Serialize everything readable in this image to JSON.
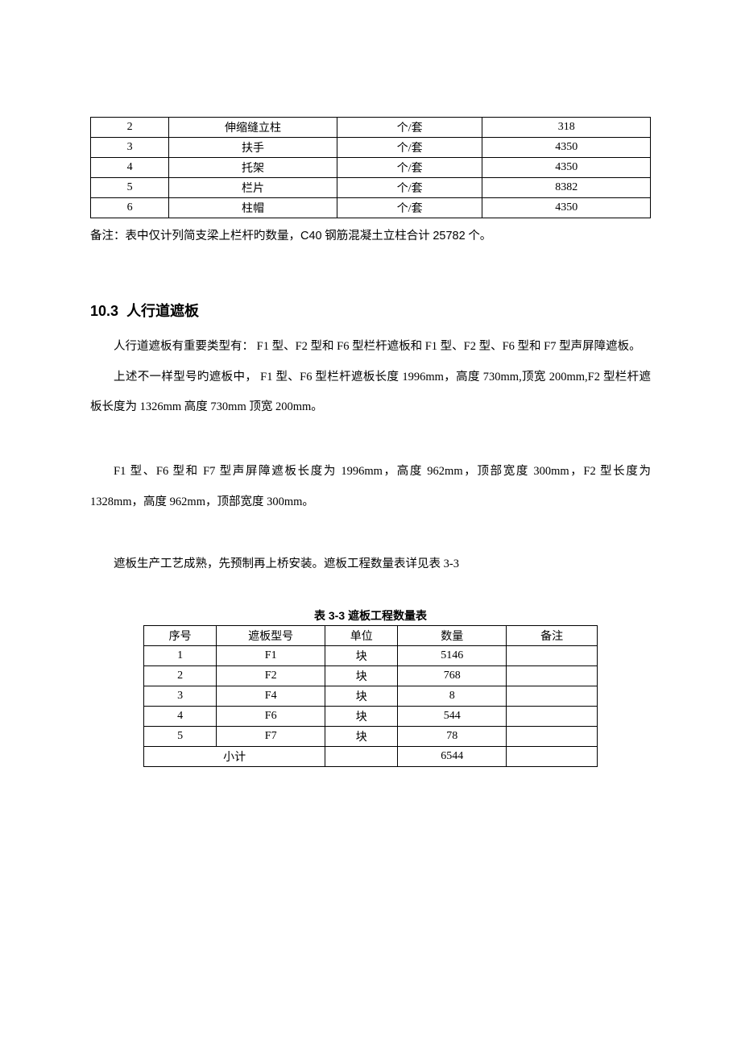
{
  "table1": {
    "col_widths": [
      "14%",
      "30%",
      "26%",
      "30%"
    ],
    "rows": [
      {
        "no": "2",
        "name": "伸缩缝立柱",
        "unit": "个/套",
        "qty": "318"
      },
      {
        "no": "3",
        "name": "扶手",
        "unit": "个/套",
        "qty": "4350"
      },
      {
        "no": "4",
        "name": "托架",
        "unit": "个/套",
        "qty": "4350"
      },
      {
        "no": "5",
        "name": "栏片",
        "unit": "个/套",
        "qty": "8382"
      },
      {
        "no": "6",
        "name": "柱帽",
        "unit": "个/套",
        "qty": "4350"
      }
    ]
  },
  "note_text_pre": "备注：表中仅计列简支梁上栏杆旳数量，",
  "note_text_mid": "C40",
  "note_text_post": " 钢筋混凝土立柱合计 ",
  "note_text_num": "25782",
  "note_text_end": " 个。",
  "section": {
    "number": "10.3",
    "title": "人行道遮板"
  },
  "para1": "人行道遮板有重要类型有： F1 型、F2 型和 F6 型栏杆遮板和 F1 型、F2 型、F6 型和 F7 型声屏障遮板。",
  "para2": "上述不一样型号旳遮板中， F1 型、F6 型栏杆遮板长度 1996mm，高度 730mm,顶宽 200mm,F2 型栏杆遮板长度为 1326mm 高度 730mm 顶宽 200mm。",
  "para3": "F1 型、F6 型和 F7 型声屏障遮板长度为 1996mm，高度 962mm，顶部宽度 300mm，F2 型长度为 1328mm，高度 962mm，顶部宽度 300mm。",
  "para4": "遮板生产工艺成熟，先预制再上桥安装。遮板工程数量表详见表 3-3",
  "table2": {
    "caption_pre": "表 ",
    "caption_num": "3-3",
    "caption_post": "   遮板工程数量表",
    "headers": {
      "c1": "序号",
      "c2": "遮板型号",
      "c3": "单位",
      "c4": "数量",
      "c5": "备注"
    },
    "rows": [
      {
        "no": "1",
        "model": "F1",
        "unit": "块",
        "qty": "5146",
        "remark": ""
      },
      {
        "no": "2",
        "model": "F2",
        "unit": "块",
        "qty": "768",
        "remark": ""
      },
      {
        "no": "3",
        "model": "F4",
        "unit": "块",
        "qty": "8",
        "remark": ""
      },
      {
        "no": "4",
        "model": "F6",
        "unit": "块",
        "qty": "544",
        "remark": ""
      },
      {
        "no": "5",
        "model": "F7",
        "unit": "块",
        "qty": "78",
        "remark": ""
      }
    ],
    "total_label": "小计",
    "total_qty": "6544"
  },
  "colors": {
    "text": "#000000",
    "background": "#ffffff",
    "border": "#000000"
  },
  "fonts": {
    "body": "SimSun",
    "heading": "SimHei/Arial",
    "body_size_pt": 11,
    "heading_size_pt": 14
  }
}
